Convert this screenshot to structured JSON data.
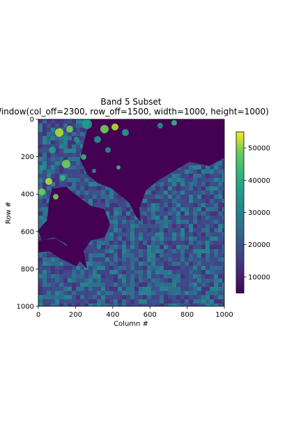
{
  "chart_data": {
    "type": "heatmap",
    "title": "Band 5 Subset",
    "subtitle": "Window(col_off=2300, row_off=1500, width=1000, height=1000)",
    "xlabel": "Column #",
    "ylabel": "Row #",
    "xlim": [
      0,
      1000
    ],
    "ylim": [
      1000,
      0
    ],
    "x_ticks": [
      0,
      200,
      400,
      600,
      800,
      1000
    ],
    "y_ticks": [
      0,
      200,
      400,
      600,
      800,
      1000
    ],
    "colormap": "viridis",
    "colorbar": {
      "range": [
        5000,
        55000
      ],
      "ticks": [
        10000,
        20000,
        30000,
        40000,
        50000
      ]
    },
    "colors": {
      "low": "#440154",
      "mid": "#21918c",
      "high": "#fde725"
    }
  }
}
